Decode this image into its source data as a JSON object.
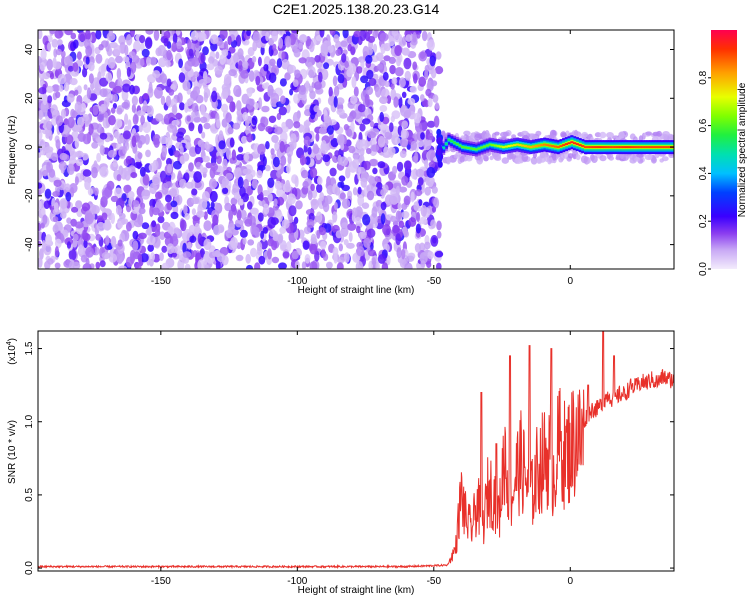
{
  "title": "C2E1.2025.138.20.23.G14",
  "colors": {
    "snr_line": "#e8302a",
    "frame": "#000000",
    "speckle_dark": "#6a00e0",
    "speckle_light": "#d6c2f7"
  },
  "chart_data": [
    {
      "type": "heatmap",
      "xlabel": "Height of straight line (km)",
      "ylabel": "Frequency (Hz)",
      "xlim": [
        -195,
        38
      ],
      "ylim": [
        -50,
        48
      ],
      "xticks": [
        -150,
        -100,
        -50,
        0
      ],
      "yticks": [
        -40,
        -20,
        0,
        20,
        40
      ],
      "colorbar": {
        "label": "Normalized spectral amplitude",
        "range": [
          0.0,
          1.0
        ],
        "ticks": [
          0.0,
          0.2,
          0.4,
          0.6,
          0.8
        ],
        "colormap": [
          "#ffffff",
          "#b08cf0",
          "#6a00e0",
          "#0000ff",
          "#00d8ff",
          "#00e080",
          "#40ff00",
          "#ffff00",
          "#ff9000",
          "#ff0000"
        ]
      },
      "noise_region_x": [
        -195,
        -48
      ],
      "signal_track": {
        "description_x": [
          -48,
          38
        ],
        "x": [
          -48,
          -45,
          -40,
          -35,
          -30,
          -25,
          -20,
          -15,
          -10,
          -5,
          0,
          5,
          10,
          15,
          20,
          25,
          30,
          38
        ],
        "freq": [
          -2,
          3,
          0,
          -1,
          1,
          0,
          1,
          0,
          1,
          0,
          2,
          0,
          0,
          0,
          0,
          0,
          0,
          0
        ],
        "peak_amplitude": [
          0.45,
          0.55,
          0.6,
          0.6,
          0.62,
          0.7,
          0.75,
          0.8,
          0.85,
          0.88,
          0.95,
          0.9,
          0.92,
          0.9,
          0.92,
          0.9,
          0.9,
          0.9
        ]
      }
    },
    {
      "type": "line",
      "xlabel": "Height of straight line (km)",
      "ylabel": "SNR (10 * v/v)",
      "y_multiplier": "(x10",
      "y_multiplier_exp": "4",
      "xlim": [
        -195,
        38
      ],
      "ylim": [
        -0.02,
        1.62
      ],
      "xticks": [
        -150,
        -100,
        -50,
        0
      ],
      "yticks": [
        0.0,
        0.5,
        1.0,
        1.5
      ],
      "series": [
        {
          "x": [
            -195,
            -150,
            -100,
            -60,
            -45,
            -42,
            -40,
            -38,
            -36,
            -34,
            -32,
            -30,
            -28,
            -26,
            -24,
            -22,
            -20,
            -18,
            -16,
            -14,
            -12,
            -10,
            -8,
            -6,
            -4,
            -2,
            0,
            2,
            4,
            6,
            8,
            10,
            12,
            14,
            16,
            18,
            20,
            22,
            24,
            26,
            28,
            30,
            32,
            34,
            36,
            38
          ],
          "y": [
            0.01,
            0.01,
            0.01,
            0.01,
            0.02,
            0.15,
            0.55,
            0.35,
            0.3,
            0.5,
            0.3,
            0.6,
            0.55,
            0.4,
            0.9,
            0.45,
            0.7,
            0.8,
            0.65,
            0.55,
            0.75,
            0.8,
            0.85,
            0.7,
            0.95,
            0.85,
            0.9,
            1.0,
            0.95,
            1.05,
            1.1,
            1.1,
            1.15,
            1.2,
            1.15,
            1.2,
            1.2,
            1.25,
            1.25,
            1.28,
            1.28,
            1.3,
            1.28,
            1.32,
            1.3,
            1.3
          ]
        }
      ],
      "annotations": [
        {
          "x": -32.5,
          "y": 1.2
        },
        {
          "x": -27,
          "y": 0.85
        },
        {
          "x": -22,
          "y": 1.45
        },
        {
          "x": -15,
          "y": 1.52
        },
        {
          "x": -7,
          "y": 1.5
        },
        {
          "x": 6.5,
          "y": 1.25
        },
        {
          "x": 12,
          "y": 1.62
        },
        {
          "x": 16,
          "y": 1.45
        }
      ]
    }
  ]
}
